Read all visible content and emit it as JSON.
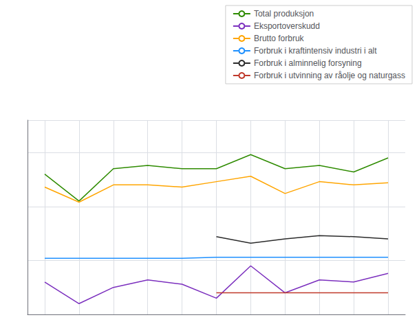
{
  "chart_data": {
    "type": "line",
    "x": [
      1,
      2,
      3,
      4,
      5,
      6,
      7,
      8,
      9,
      10,
      11
    ],
    "series": [
      {
        "name": "Total produksjon",
        "color": "#2e8b00",
        "values": [
          13.0,
          10.5,
          13.5,
          13.8,
          13.5,
          13.5,
          14.8,
          13.5,
          13.8,
          13.2,
          14.5
        ]
      },
      {
        "name": "Eksportoverskudd",
        "color": "#7b2fbe",
        "values": [
          3.0,
          1.0,
          2.5,
          3.2,
          2.8,
          1.5,
          4.5,
          2.0,
          3.2,
          3.0,
          3.8
        ]
      },
      {
        "name": "Brutto forbruk",
        "color": "#ffa500",
        "values": [
          11.8,
          10.4,
          12.0,
          12.0,
          11.8,
          12.3,
          12.8,
          11.2,
          12.3,
          12.0,
          12.2
        ]
      },
      {
        "name": "Forbruk i kraftintensiv industri i alt",
        "color": "#1e90ff",
        "values": [
          5.2,
          5.2,
          5.2,
          5.2,
          5.2,
          5.3,
          5.3,
          5.3,
          5.3,
          5.3,
          5.3
        ]
      },
      {
        "name": "Forbruk i alminnelig forsyning",
        "color": "#2b2b2b",
        "values": [
          null,
          null,
          null,
          null,
          null,
          7.2,
          6.6,
          7.0,
          7.3,
          7.2,
          7.0
        ]
      },
      {
        "name": "Forbruk i utvinning av råolje og naturgass",
        "color": "#c0392b",
        "values": [
          null,
          null,
          null,
          null,
          null,
          2.0,
          2.0,
          2.0,
          2.0,
          2.0,
          2.0
        ]
      }
    ],
    "xlim": [
      0.5,
      11.5
    ],
    "xticks": [
      1,
      2,
      3,
      4,
      5,
      6,
      7,
      8,
      9,
      10,
      11
    ],
    "ylim": [
      0,
      18
    ],
    "yticks": [
      0,
      5,
      10,
      15
    ],
    "grid": true,
    "tick_labels": false,
    "legend": "upper right"
  }
}
